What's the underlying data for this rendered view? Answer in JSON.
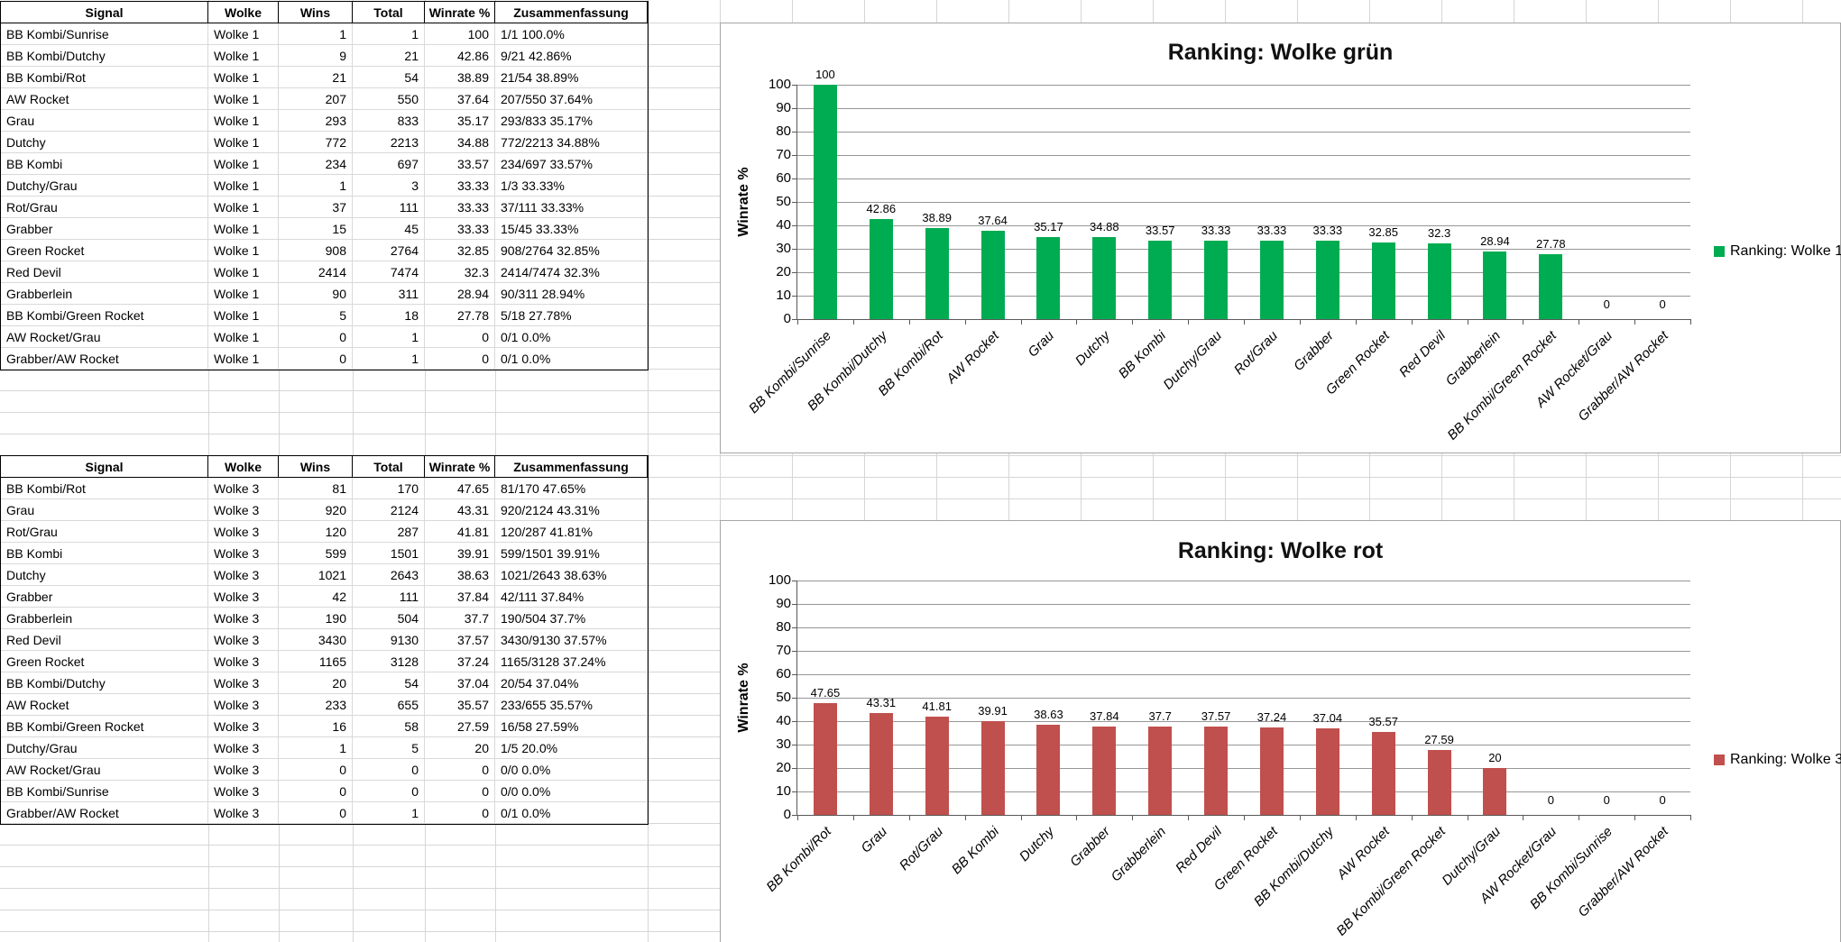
{
  "tables": [
    {
      "name": "ranking-wolke-1",
      "headers": [
        "Signal",
        "Wolke",
        "Wins",
        "Total",
        "Winrate %",
        "Zusammenfassung"
      ],
      "rows": [
        [
          "BB Kombi/Sunrise",
          "Wolke 1",
          "1",
          "1",
          "100",
          "1/1 100.0%"
        ],
        [
          "BB Kombi/Dutchy",
          "Wolke 1",
          "9",
          "21",
          "42.86",
          "9/21 42.86%"
        ],
        [
          "BB Kombi/Rot",
          "Wolke 1",
          "21",
          "54",
          "38.89",
          "21/54 38.89%"
        ],
        [
          "AW Rocket",
          "Wolke 1",
          "207",
          "550",
          "37.64",
          "207/550 37.64%"
        ],
        [
          "Grau",
          "Wolke 1",
          "293",
          "833",
          "35.17",
          "293/833 35.17%"
        ],
        [
          "Dutchy",
          "Wolke 1",
          "772",
          "2213",
          "34.88",
          "772/2213 34.88%"
        ],
        [
          "BB Kombi",
          "Wolke 1",
          "234",
          "697",
          "33.57",
          "234/697 33.57%"
        ],
        [
          "Dutchy/Grau",
          "Wolke 1",
          "1",
          "3",
          "33.33",
          "1/3 33.33%"
        ],
        [
          "Rot/Grau",
          "Wolke 1",
          "37",
          "111",
          "33.33",
          "37/111 33.33%"
        ],
        [
          "Grabber",
          "Wolke 1",
          "15",
          "45",
          "33.33",
          "15/45 33.33%"
        ],
        [
          "Green Rocket",
          "Wolke 1",
          "908",
          "2764",
          "32.85",
          "908/2764 32.85%"
        ],
        [
          "Red Devil",
          "Wolke 1",
          "2414",
          "7474",
          "32.3",
          "2414/7474 32.3%"
        ],
        [
          "Grabberlein",
          "Wolke 1",
          "90",
          "311",
          "28.94",
          "90/311 28.94%"
        ],
        [
          "BB Kombi/Green Rocket",
          "Wolke 1",
          "5",
          "18",
          "27.78",
          "5/18 27.78%"
        ],
        [
          "AW Rocket/Grau",
          "Wolke 1",
          "0",
          "1",
          "0",
          "0/1 0.0%"
        ],
        [
          "Grabber/AW Rocket",
          "Wolke 1",
          "0",
          "1",
          "0",
          "0/1 0.0%"
        ]
      ]
    },
    {
      "name": "ranking-wolke-3",
      "headers": [
        "Signal",
        "Wolke",
        "Wins",
        "Total",
        "Winrate %",
        "Zusammenfassung"
      ],
      "rows": [
        [
          "BB Kombi/Rot",
          "Wolke 3",
          "81",
          "170",
          "47.65",
          "81/170 47.65%"
        ],
        [
          "Grau",
          "Wolke 3",
          "920",
          "2124",
          "43.31",
          "920/2124 43.31%"
        ],
        [
          "Rot/Grau",
          "Wolke 3",
          "120",
          "287",
          "41.81",
          "120/287 41.81%"
        ],
        [
          "BB Kombi",
          "Wolke 3",
          "599",
          "1501",
          "39.91",
          "599/1501 39.91%"
        ],
        [
          "Dutchy",
          "Wolke 3",
          "1021",
          "2643",
          "38.63",
          "1021/2643 38.63%"
        ],
        [
          "Grabber",
          "Wolke 3",
          "42",
          "111",
          "37.84",
          "42/111 37.84%"
        ],
        [
          "Grabberlein",
          "Wolke 3",
          "190",
          "504",
          "37.7",
          "190/504 37.7%"
        ],
        [
          "Red Devil",
          "Wolke 3",
          "3430",
          "9130",
          "37.57",
          "3430/9130 37.57%"
        ],
        [
          "Green Rocket",
          "Wolke 3",
          "1165",
          "3128",
          "37.24",
          "1165/3128 37.24%"
        ],
        [
          "BB Kombi/Dutchy",
          "Wolke 3",
          "20",
          "54",
          "37.04",
          "20/54 37.04%"
        ],
        [
          "AW Rocket",
          "Wolke 3",
          "233",
          "655",
          "35.57",
          "233/655 35.57%"
        ],
        [
          "BB Kombi/Green Rocket",
          "Wolke 3",
          "16",
          "58",
          "27.59",
          "16/58 27.59%"
        ],
        [
          "Dutchy/Grau",
          "Wolke 3",
          "1",
          "5",
          "20",
          "1/5 20.0%"
        ],
        [
          "AW Rocket/Grau",
          "Wolke 3",
          "0",
          "0",
          "0",
          "0/0 0.0%"
        ],
        [
          "BB Kombi/Sunrise",
          "Wolke 3",
          "0",
          "0",
          "0",
          "0/0 0.0%"
        ],
        [
          "Grabber/AW Rocket",
          "Wolke 3",
          "0",
          "1",
          "0",
          "0/1 0.0%"
        ]
      ]
    }
  ],
  "chart_data": [
    {
      "type": "bar",
      "title": "Ranking: Wolke grün",
      "legend": "Ranking: Wolke 1",
      "legend_position": "right",
      "ylabel": "Winrate %",
      "ylim": [
        0,
        100
      ],
      "ytick_step": 10,
      "grid": true,
      "bar_color": "#00AC51",
      "categories": [
        "BB Kombi/Sunrise",
        "BB Kombi/Dutchy",
        "BB Kombi/Rot",
        "AW Rocket",
        "Grau",
        "Dutchy",
        "BB Kombi",
        "Dutchy/Grau",
        "Rot/Grau",
        "Grabber",
        "Green Rocket",
        "Red Devil",
        "Grabberlein",
        "BB Kombi/Green Rocket",
        "AW Rocket/Grau",
        "Grabber/AW Rocket"
      ],
      "values": [
        100,
        42.86,
        38.89,
        37.64,
        35.17,
        34.88,
        33.57,
        33.33,
        33.33,
        33.33,
        32.85,
        32.3,
        28.94,
        27.78,
        0,
        0
      ]
    },
    {
      "type": "bar",
      "title": "Ranking: Wolke rot",
      "legend": "Ranking: Wolke 3",
      "legend_position": "right",
      "ylabel": "Winrate %",
      "ylim": [
        0,
        100
      ],
      "ytick_step": 10,
      "grid": true,
      "bar_color": "#C0504D",
      "categories": [
        "BB Kombi/Rot",
        "Grau",
        "Rot/Grau",
        "BB Kombi",
        "Dutchy",
        "Grabber",
        "Grabberlein",
        "Red Devil",
        "Green Rocket",
        "BB Kombi/Dutchy",
        "AW Rocket",
        "BB Kombi/Green Rocket",
        "Dutchy/Grau",
        "AW Rocket/Grau",
        "BB Kombi/Sunrise",
        "Grabber/AW Rocket"
      ],
      "values": [
        47.65,
        43.31,
        41.81,
        39.91,
        38.63,
        37.84,
        37.7,
        37.57,
        37.24,
        37.04,
        35.57,
        27.59,
        20,
        0,
        0,
        0
      ]
    }
  ]
}
